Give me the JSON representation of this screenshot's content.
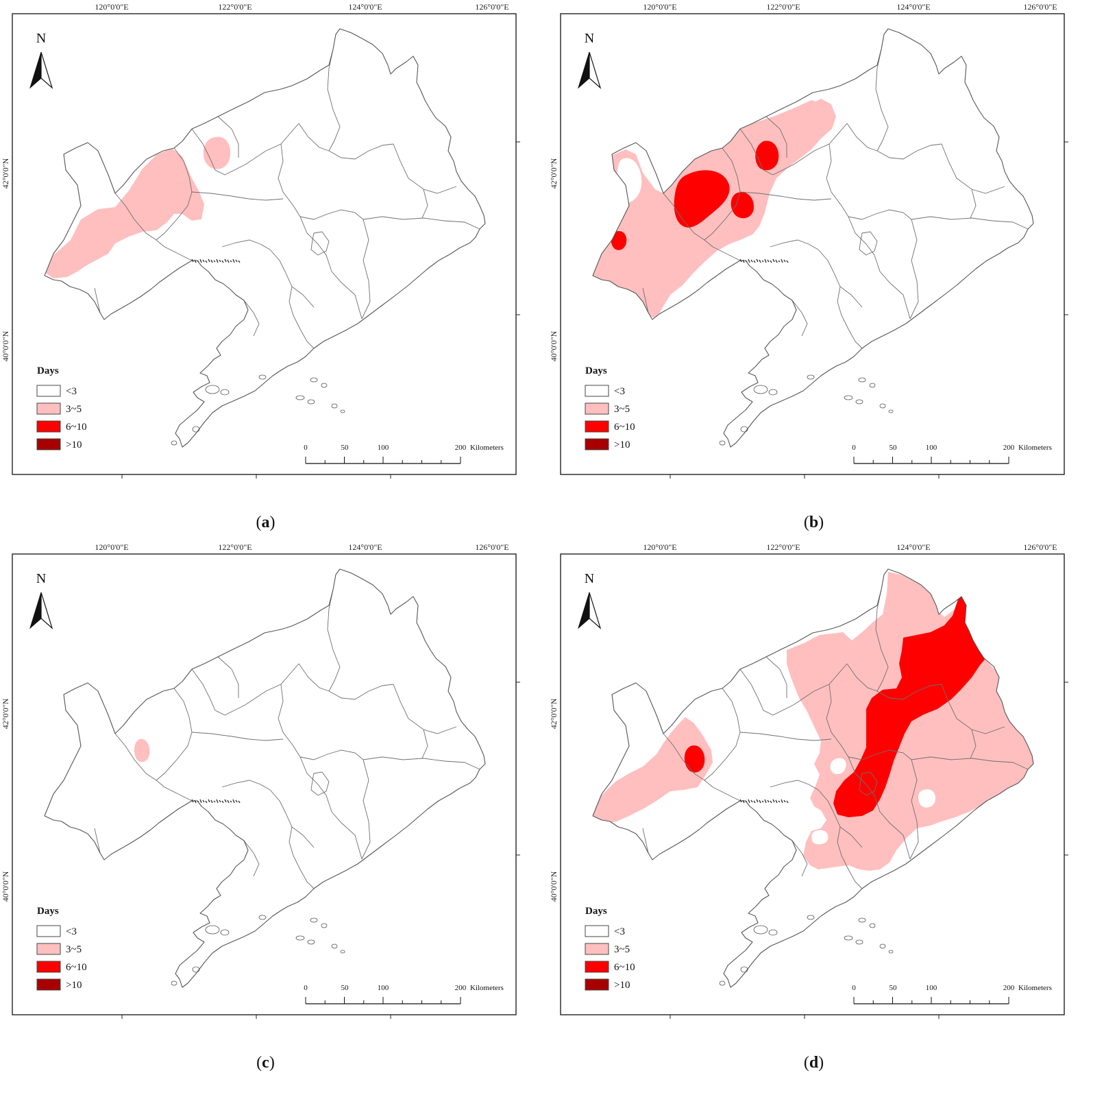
{
  "figure": {
    "panels": [
      {
        "id": "a",
        "caption": "(a)",
        "caption_letter": "a",
        "regions": [
          {
            "klass": "3~5",
            "shape": "belt-west"
          },
          {
            "klass": "3~5",
            "shape": "spot-north"
          }
        ]
      },
      {
        "id": "b",
        "caption": "(b)",
        "caption_letter": "b",
        "regions": [
          {
            "klass": "3~5",
            "shape": "wide-west"
          },
          {
            "klass": "6~10",
            "shape": "core-center"
          },
          {
            "klass": "6~10",
            "shape": "spot-east"
          },
          {
            "klass": "6~10",
            "shape": "spot-ne"
          },
          {
            "klass": "6~10",
            "shape": "spot-west"
          }
        ]
      },
      {
        "id": "c",
        "caption": "(c)",
        "caption_letter": "c",
        "regions": [
          {
            "klass": "3~5",
            "shape": "spot-small"
          }
        ]
      },
      {
        "id": "d",
        "caption": "(d)",
        "caption_letter": "d",
        "regions": [
          {
            "klass": "3~5",
            "shape": "west-lobe"
          },
          {
            "klass": "3~5",
            "shape": "east-broad"
          },
          {
            "klass": "6~10",
            "shape": "west-core"
          },
          {
            "klass": "6~10",
            "shape": "east-band"
          }
        ]
      }
    ],
    "lon_labels": [
      "120°0'0\"E",
      "122°0'0\"E",
      "124°0'0\"E",
      "126°0'0\"E"
    ],
    "lat_labels": [
      "42°0'0\"N",
      "40°0'0\"N"
    ],
    "north_arrow_label": "N",
    "legend": {
      "title": "Days",
      "items": [
        {
          "label": "<3",
          "color": "#ffffff"
        },
        {
          "label": "3~5",
          "color": "#ffbfbf"
        },
        {
          "label": "6~10",
          "color": "#ff0000"
        },
        {
          "label": ">10",
          "color": "#a80000"
        }
      ]
    },
    "scale_bar": {
      "ticks": [
        "0",
        "50",
        "100",
        "200"
      ],
      "unit": "Kilometers"
    },
    "colors": {
      "boundary": "#6e6e6e",
      "frame": "#222222"
    }
  }
}
